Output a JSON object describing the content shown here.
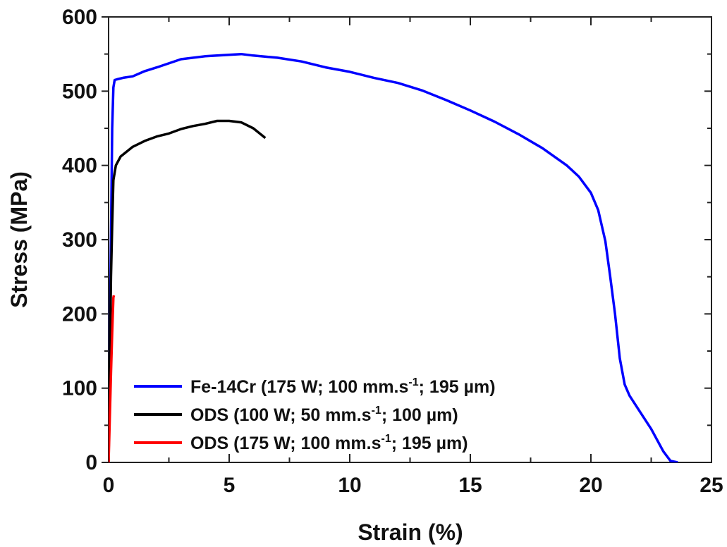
{
  "chart_data": {
    "type": "line",
    "xlabel": "Strain (%)",
    "ylabel": "Stress (MPa)",
    "xlim": [
      0,
      25
    ],
    "ylim": [
      0,
      600
    ],
    "xticks": [
      0,
      5,
      10,
      15,
      20,
      25
    ],
    "yticks": [
      0,
      100,
      200,
      300,
      400,
      500,
      600
    ],
    "grid": false,
    "legend_position": "bottom-left",
    "series": [
      {
        "name": "Fe-14Cr (175 W; 100 mm.s-1; 195 µm)",
        "legend": {
          "main": "Fe-14Cr (175 W; 100 mm.s",
          "sup": "-1",
          "tail": "; 195 µm)"
        },
        "color": "#0000ff",
        "x": [
          0,
          0.05,
          0.1,
          0.15,
          0.2,
          0.25,
          0.35,
          0.6,
          1,
          1.5,
          2,
          3,
          4,
          5,
          5.5,
          6,
          7,
          8,
          9,
          10,
          11,
          12,
          13,
          14,
          15,
          16,
          17,
          18,
          19,
          19.5,
          20,
          20.3,
          20.6,
          20.8,
          21,
          21.2,
          21.4,
          21.6,
          22,
          22.5,
          23,
          23.3,
          23.6
        ],
        "y": [
          0,
          150,
          300,
          450,
          505,
          515,
          516,
          518,
          520,
          527,
          532,
          543,
          547,
          549,
          550,
          548,
          545,
          540,
          532,
          526,
          518,
          511,
          501,
          488,
          474,
          459,
          442,
          423,
          400,
          385,
          363,
          340,
          298,
          250,
          200,
          140,
          105,
          90,
          70,
          45,
          15,
          2,
          0
        ]
      },
      {
        "name": "ODS (100 W; 50 mm.s-1; 100 µm)",
        "legend": {
          "main": "ODS (100 W; 50 mm.s",
          "sup": "-1",
          "tail": "; 100 µm)"
        },
        "color": "#000000",
        "x": [
          0,
          0.05,
          0.1,
          0.15,
          0.2,
          0.3,
          0.5,
          1,
          1.5,
          2,
          2.5,
          3,
          3.5,
          4,
          4.5,
          5,
          5.5,
          6,
          6.5
        ],
        "y": [
          0,
          130,
          250,
          320,
          380,
          400,
          412,
          425,
          433,
          439,
          443,
          449,
          453,
          456,
          460,
          460,
          458,
          450,
          437
        ]
      },
      {
        "name": "ODS (175 W; 100 mm.s-1; 195 µm)",
        "legend": {
          "main": "ODS (175 W; 100 mm.s",
          "sup": "-1",
          "tail": "; 195 µm)"
        },
        "color": "#ff0000",
        "x": [
          0,
          0.05,
          0.1,
          0.15,
          0.2,
          0.22
        ],
        "y": [
          0,
          60,
          120,
          175,
          222,
          225
        ]
      }
    ]
  }
}
